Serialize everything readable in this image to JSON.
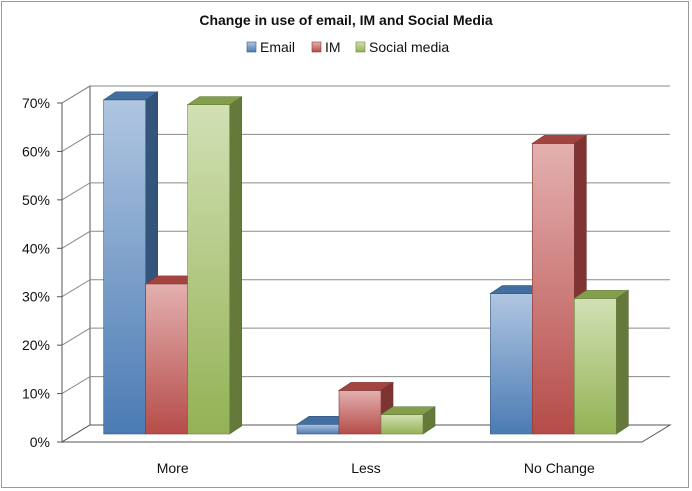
{
  "chart_data": {
    "type": "bar",
    "title": "Change in use of email, IM and Social Media",
    "categories": [
      "More",
      "Less",
      "No Change"
    ],
    "series": [
      {
        "name": "Email",
        "values": [
          69,
          2,
          29
        ],
        "color": "#4f81bd"
      },
      {
        "name": "IM",
        "values": [
          31,
          9,
          60
        ],
        "color": "#c0504d"
      },
      {
        "name": "Social media",
        "values": [
          68,
          4,
          28
        ],
        "color": "#9bbb59"
      }
    ],
    "yticks": [
      "0%",
      "10%",
      "20%",
      "30%",
      "40%",
      "50%",
      "60%",
      "70%"
    ],
    "ylim": [
      0,
      70
    ],
    "xlabel": "",
    "ylabel": "",
    "grid": true,
    "legend": "top",
    "style": "3d-clustered-column"
  }
}
